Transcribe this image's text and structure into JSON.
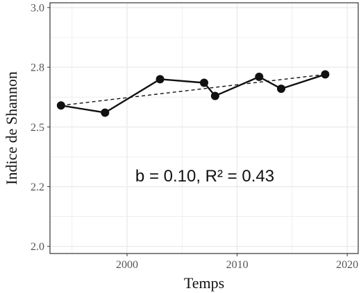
{
  "chart_data": {
    "type": "line",
    "title": "",
    "xlabel": "Temps",
    "ylabel": "Indice de Shannon",
    "xlim": [
      1993,
      2021
    ],
    "ylim": [
      1.97,
      3.02
    ],
    "x_ticks": [
      2000,
      2010,
      2020
    ],
    "x_tick_labels": [
      "2000",
      "2010",
      "2020"
    ],
    "y_ticks": [
      2.0,
      2.25,
      2.5,
      2.75,
      3.0
    ],
    "y_tick_labels": [
      "2.0",
      "2.2",
      "2.5",
      "2.8",
      "3.0"
    ],
    "x_minor_grid": [
      1995,
      2005,
      2015
    ],
    "y_minor_grid": [
      2.125,
      2.375,
      2.625,
      2.875
    ],
    "grid": true,
    "series": [
      {
        "x": [
          1994,
          1998,
          2003,
          2007,
          2008,
          2012,
          2014,
          2018
        ],
        "values": [
          2.59,
          2.56,
          2.7,
          2.685,
          2.63,
          2.71,
          2.66,
          2.72
        ]
      }
    ],
    "trendline": {
      "style": "dashed",
      "x": [
        1994,
        2018
      ],
      "values": [
        2.59,
        2.72
      ]
    },
    "annotation": "b = 0.10, R² = 0.43"
  },
  "colors": {
    "series": "#111111",
    "grid": "#ebebeb",
    "axis": "#333333"
  }
}
